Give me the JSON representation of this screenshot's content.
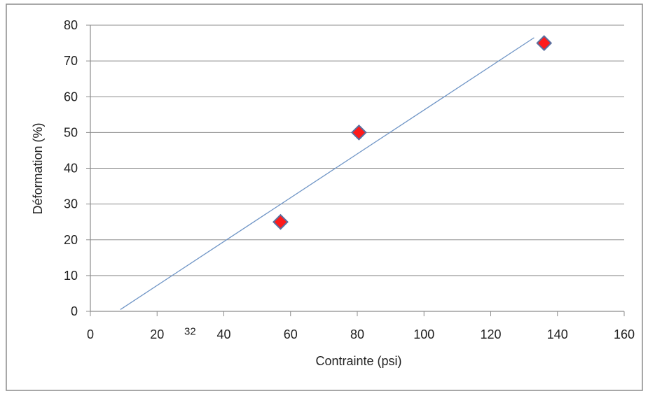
{
  "chart_data": {
    "type": "scatter",
    "xlabel": "Contrainte (psi)",
    "ylabel": "Déformation (%)",
    "xlim": [
      0,
      160
    ],
    "ylim": [
      0,
      80
    ],
    "x_ticks": [
      0,
      20,
      40,
      60,
      80,
      100,
      120,
      140,
      160
    ],
    "y_ticks": [
      0,
      10,
      20,
      30,
      40,
      50,
      60,
      70,
      80
    ],
    "x_tick_labels": [
      "0",
      "20",
      "40",
      "60",
      "80",
      "100",
      "120",
      "140",
      "160"
    ],
    "y_tick_labels": [
      "0",
      "10",
      "20",
      "30",
      "40",
      "50",
      "60",
      "70",
      "80"
    ],
    "grid": "horizontal",
    "series": [
      {
        "points": [
          {
            "x": 57,
            "y": 25
          },
          {
            "x": 80.5,
            "y": 50
          },
          {
            "x": 136,
            "y": 75
          }
        ],
        "marker": "diamond",
        "color": "#ff1a1a",
        "edge_color": "#5a6e9e"
      }
    ],
    "trendline": {
      "type": "linear",
      "from": {
        "x": 9,
        "y": 0.5
      },
      "to": {
        "x": 133,
        "y": 76.5
      },
      "color": "#6f95c6"
    },
    "annotations": [
      {
        "text": "32",
        "x": 32,
        "y": -4.6
      }
    ],
    "colors": {
      "frame": "#8c8c8c",
      "grid": "#8c8c8c",
      "axis": "#8c8c8c",
      "text": "#222222"
    }
  }
}
